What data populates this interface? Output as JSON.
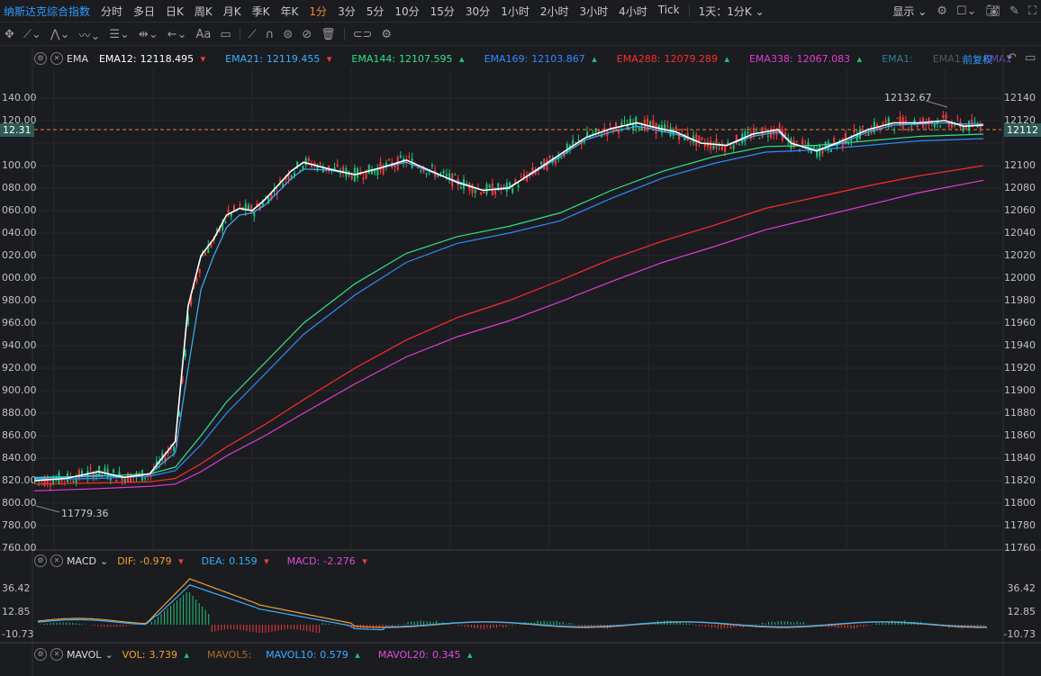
{
  "topbar": {
    "title": "纳斯达克综合指数",
    "periods": [
      "分时",
      "多日",
      "日K",
      "周K",
      "月K",
      "季K",
      "年K",
      "1分",
      "3分",
      "5分",
      "10分",
      "15分",
      "30分",
      "1小时",
      "2小时",
      "3小时",
      "4小时",
      "Tick"
    ],
    "active_period": "1分",
    "range_selector": "1天：1分K",
    "display_menu": "显示"
  },
  "main_legend": {
    "indicator": "EMA",
    "items": [
      {
        "label": "EMA12:",
        "value": "12118.495",
        "dir": "down",
        "color": "#ffffff"
      },
      {
        "label": "EMA21:",
        "value": "12119.455",
        "dir": "down",
        "color": "#3ab0ff"
      },
      {
        "label": "EMA144:",
        "value": "12107.595",
        "dir": "up",
        "color": "#2ee38a"
      },
      {
        "label": "EMA169:",
        "value": "12103.867",
        "dir": "up",
        "color": "#2f8bff"
      },
      {
        "label": "EMA288:",
        "value": "12079.289",
        "dir": "up",
        "color": "#ff2b2b"
      },
      {
        "label": "EMA338:",
        "value": "12067.083",
        "dir": "up",
        "color": "#e23bd6"
      },
      {
        "label": "EMA1:",
        "value": "",
        "dir": "",
        "color": "#2f7e8a"
      },
      {
        "label": "EMA1:",
        "value": "",
        "dir": "",
        "color": "#55565c"
      },
      {
        "label": "EMA1",
        "value": "",
        "dir": "",
        "color": "#6a4bb3"
      }
    ],
    "adjust": "前复权"
  },
  "price_axis_left": [
    "140.00",
    "120.00",
    "12.31",
    "100.00",
    "080.00",
    "060.00",
    "040.00",
    "020.00",
    "000.00",
    "980.00",
    "960.00",
    "940.00",
    "920.00",
    "900.00",
    "880.00",
    "860.00",
    "840.00",
    "820.00",
    "800.00",
    "780.00",
    "760.00"
  ],
  "price_axis_right": [
    "12140",
    "12120",
    "12112",
    "12100",
    "12080",
    "12060",
    "12040",
    "12020",
    "12000",
    "11980",
    "11960",
    "11940",
    "11920",
    "11900",
    "11880",
    "11860",
    "11840",
    "11820",
    "11800",
    "11780",
    "11760"
  ],
  "current_price_left": "12.31",
  "current_price_right": "12112",
  "high_annotation": "12132.67",
  "low_annotation": "11779.36",
  "macd_legend": {
    "name": "MACD",
    "dif_label": "DIF:",
    "dif": "-0.979",
    "dif_dir": "down",
    "dea_label": "DEA:",
    "dea": "0.159",
    "dea_dir": "down",
    "macd_label": "MACD:",
    "macd": "-2.276",
    "macd_dir": "down"
  },
  "macd_axis": [
    "36.42",
    "12.85",
    "-10.73"
  ],
  "vol_legend": {
    "name": "MAVOL",
    "vol_label": "VOL:",
    "vol": "3.739",
    "vol_dir": "up",
    "ma5_label": "MAVOL5:",
    "ma10_label": "MAVOL10:",
    "ma10": "0.579",
    "ma10_dir": "up",
    "ma20_label": "MAVOL20:",
    "ma20": "0.345",
    "ma20_dir": "up"
  },
  "colors": {
    "up": "#1ec47a",
    "down": "#f23c3c",
    "bg": "#1b1c20",
    "grid": "#26272c",
    "dashed": "#e8843a"
  },
  "chart_data": {
    "type": "line",
    "y_range": [
      11760,
      12140
    ],
    "series": [
      {
        "name": "EMA12",
        "points": [
          [
            0,
            11800
          ],
          [
            5,
            11802
          ],
          [
            10,
            11808
          ],
          [
            14,
            11803
          ],
          [
            18,
            11806
          ],
          [
            22,
            11835
          ],
          [
            24,
            11955
          ],
          [
            26,
            12000
          ],
          [
            28,
            12015
          ],
          [
            30,
            12036
          ],
          [
            32,
            12042
          ],
          [
            34,
            12040
          ],
          [
            36,
            12050
          ],
          [
            40,
            12075
          ],
          [
            42,
            12083
          ],
          [
            46,
            12077
          ],
          [
            50,
            12072
          ],
          [
            54,
            12078
          ],
          [
            58,
            12085
          ],
          [
            62,
            12075
          ],
          [
            66,
            12065
          ],
          [
            70,
            12058
          ],
          [
            74,
            12060
          ],
          [
            78,
            12075
          ],
          [
            82,
            12090
          ],
          [
            86,
            12105
          ],
          [
            90,
            12113
          ],
          [
            94,
            12118
          ],
          [
            96,
            12115
          ],
          [
            100,
            12110
          ],
          [
            104,
            12100
          ],
          [
            108,
            12098
          ],
          [
            112,
            12108
          ],
          [
            116,
            12112
          ],
          [
            118,
            12100
          ],
          [
            122,
            12093
          ],
          [
            126,
            12102
          ],
          [
            130,
            12112
          ],
          [
            134,
            12118
          ],
          [
            138,
            12118
          ],
          [
            142,
            12120
          ],
          [
            145,
            12115
          ],
          [
            148,
            12116
          ]
        ]
      },
      {
        "name": "EMA21",
        "points": [
          [
            0,
            11802
          ],
          [
            5,
            11803
          ],
          [
            10,
            11805
          ],
          [
            14,
            11803
          ],
          [
            18,
            11806
          ],
          [
            22,
            11825
          ],
          [
            24,
            11900
          ],
          [
            26,
            11970
          ],
          [
            28,
            12000
          ],
          [
            30,
            12025
          ],
          [
            32,
            12036
          ],
          [
            34,
            12038
          ],
          [
            36,
            12045
          ],
          [
            40,
            12068
          ],
          [
            42,
            12077
          ],
          [
            46,
            12076
          ],
          [
            50,
            12072
          ],
          [
            54,
            12078
          ],
          [
            58,
            12083
          ],
          [
            62,
            12074
          ],
          [
            66,
            12066
          ],
          [
            70,
            12058
          ],
          [
            74,
            12061
          ],
          [
            78,
            12074
          ],
          [
            82,
            12088
          ],
          [
            86,
            12103
          ],
          [
            90,
            12110
          ],
          [
            94,
            12115
          ],
          [
            96,
            12113
          ],
          [
            100,
            12108
          ],
          [
            104,
            12100
          ],
          [
            108,
            12098
          ],
          [
            112,
            12106
          ],
          [
            116,
            12110
          ],
          [
            118,
            12100
          ],
          [
            122,
            12094
          ],
          [
            126,
            12100
          ],
          [
            130,
            12110
          ],
          [
            134,
            12116
          ],
          [
            138,
            12117
          ],
          [
            142,
            12118
          ],
          [
            145,
            12117
          ],
          [
            148,
            12117
          ]
        ]
      },
      {
        "name": "EMA144",
        "points": [
          [
            0,
            11803
          ],
          [
            10,
            11804
          ],
          [
            18,
            11806
          ],
          [
            22,
            11812
          ],
          [
            26,
            11840
          ],
          [
            30,
            11870
          ],
          [
            36,
            11905
          ],
          [
            42,
            11940
          ],
          [
            50,
            11975
          ],
          [
            58,
            12002
          ],
          [
            66,
            12017
          ],
          [
            74,
            12026
          ],
          [
            82,
            12038
          ],
          [
            90,
            12058
          ],
          [
            98,
            12075
          ],
          [
            106,
            12088
          ],
          [
            114,
            12097
          ],
          [
            122,
            12098
          ],
          [
            130,
            12102
          ],
          [
            138,
            12106
          ],
          [
            148,
            12108
          ]
        ]
      },
      {
        "name": "EMA169",
        "points": [
          [
            0,
            11801
          ],
          [
            10,
            11802
          ],
          [
            18,
            11804
          ],
          [
            22,
            11809
          ],
          [
            26,
            11832
          ],
          [
            30,
            11860
          ],
          [
            36,
            11895
          ],
          [
            42,
            11930
          ],
          [
            50,
            11965
          ],
          [
            58,
            11994
          ],
          [
            66,
            12011
          ],
          [
            74,
            12020
          ],
          [
            82,
            12031
          ],
          [
            90,
            12051
          ],
          [
            98,
            12069
          ],
          [
            106,
            12082
          ],
          [
            114,
            12092
          ],
          [
            122,
            12094
          ],
          [
            130,
            12098
          ],
          [
            138,
            12102
          ],
          [
            148,
            12104
          ]
        ]
      },
      {
        "name": "EMA288",
        "points": [
          [
            0,
            11797
          ],
          [
            10,
            11798
          ],
          [
            18,
            11799
          ],
          [
            22,
            11802
          ],
          [
            26,
            11815
          ],
          [
            30,
            11830
          ],
          [
            36,
            11850
          ],
          [
            42,
            11872
          ],
          [
            50,
            11900
          ],
          [
            58,
            11925
          ],
          [
            66,
            11945
          ],
          [
            74,
            11960
          ],
          [
            82,
            11978
          ],
          [
            90,
            11997
          ],
          [
            98,
            12013
          ],
          [
            106,
            12027
          ],
          [
            114,
            12042
          ],
          [
            122,
            12052
          ],
          [
            130,
            12062
          ],
          [
            138,
            12071
          ],
          [
            148,
            12080
          ]
        ]
      },
      {
        "name": "EMA338",
        "points": [
          [
            0,
            11791
          ],
          [
            10,
            11793
          ],
          [
            18,
            11795
          ],
          [
            22,
            11797
          ],
          [
            26,
            11808
          ],
          [
            30,
            11822
          ],
          [
            36,
            11840
          ],
          [
            42,
            11860
          ],
          [
            50,
            11886
          ],
          [
            58,
            11910
          ],
          [
            66,
            11928
          ],
          [
            74,
            11942
          ],
          [
            82,
            11959
          ],
          [
            90,
            11977
          ],
          [
            98,
            11994
          ],
          [
            106,
            12008
          ],
          [
            114,
            12023
          ],
          [
            122,
            12034
          ],
          [
            130,
            12045
          ],
          [
            138,
            12056
          ],
          [
            148,
            12067
          ]
        ]
      }
    ]
  }
}
